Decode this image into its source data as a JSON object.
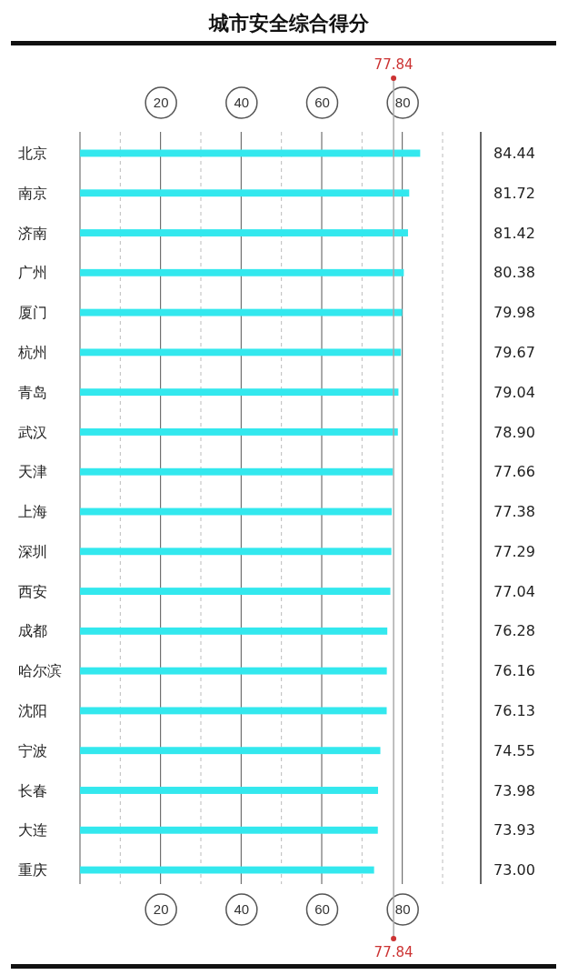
{
  "chart_data": {
    "type": "bar",
    "orientation": "horizontal",
    "title": "城市安全综合得分",
    "categories": [
      "北京",
      "南京",
      "济南",
      "广州",
      "厦门",
      "杭州",
      "青岛",
      "武汉",
      "天津",
      "上海",
      "深圳",
      "西安",
      "成都",
      "哈尔滨",
      "沈阳",
      "宁波",
      "长春",
      "大连",
      "重庆"
    ],
    "values": [
      84.44,
      81.72,
      81.42,
      80.38,
      79.98,
      79.67,
      79.04,
      78.9,
      77.66,
      77.38,
      77.29,
      77.04,
      76.28,
      76.16,
      76.13,
      74.55,
      73.98,
      73.93,
      73.0
    ],
    "value_labels": [
      "84.44",
      "81.72",
      "81.42",
      "80.38",
      "79.98",
      "79.67",
      "79.04",
      "78.90",
      "77.66",
      "77.38",
      "77.29",
      "77.04",
      "76.28",
      "76.16",
      "76.13",
      "74.55",
      "73.98",
      "73.93",
      "73.00"
    ],
    "color": "#33e8ee",
    "xlim": [
      0,
      90
    ],
    "xticks": [
      {
        "value": 10,
        "label": null
      },
      20,
      {
        "value": 30,
        "label": null
      },
      40,
      {
        "value": 50,
        "label": null
      },
      60,
      {
        "value": 70,
        "label": null
      },
      80,
      {
        "value": 90,
        "label": null
      }
    ],
    "x2lim": [
      0,
      90
    ],
    "x2ticks": [
      20,
      40,
      60,
      80
    ],
    "grid": "x",
    "ref_lines": [
      {
        "axis": "x",
        "value": 77.84,
        "label": "77.84",
        "color": "#aaaaaa"
      }
    ]
  }
}
